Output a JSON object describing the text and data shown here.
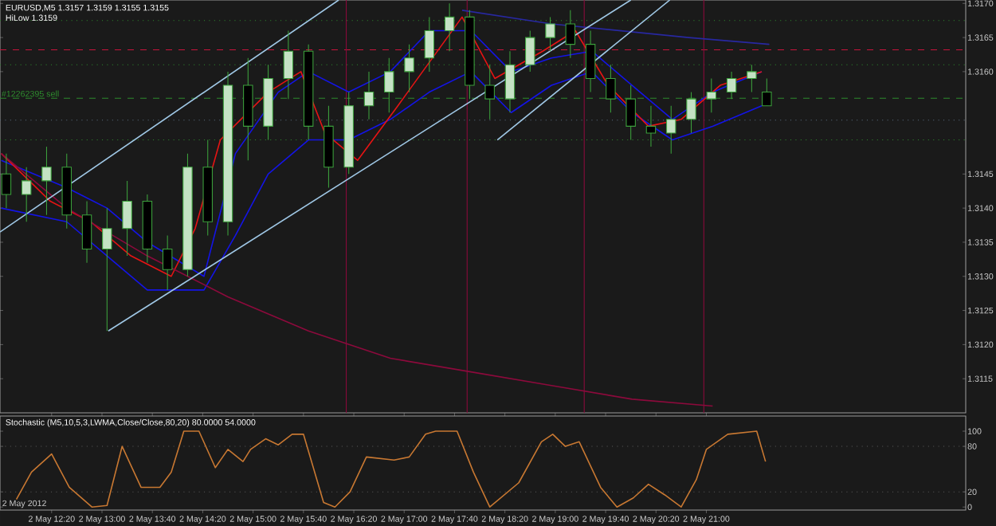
{
  "chart_data": [
    {
      "type": "candlestick",
      "title": "EURUSD,M5 1.3157 1.3159 1.3155 1.3155",
      "subtitle": "HiLow 1.3159",
      "color": "#3ca03c",
      "x": [
        "2012-05-02T11:44",
        "2012-05-02T12:00",
        "2012-05-02T12:16",
        "2012-05-02T12:32",
        "2012-05-02T12:48",
        "2012-05-02T13:04",
        "2012-05-02T13:20",
        "2012-05-02T13:36",
        "2012-05-02T13:52",
        "2012-05-02T14:08",
        "2012-05-02T14:24",
        "2012-05-02T14:40",
        "2012-05-02T14:56",
        "2012-05-02T15:12",
        "2012-05-02T15:28",
        "2012-05-02T15:44",
        "2012-05-02T16:00",
        "2012-05-02T16:16",
        "2012-05-02T16:32",
        "2012-05-02T16:48",
        "2012-05-02T17:04",
        "2012-05-02T17:20",
        "2012-05-02T17:36",
        "2012-05-02T17:52",
        "2012-05-02T18:08",
        "2012-05-02T18:24",
        "2012-05-02T18:40",
        "2012-05-02T18:56",
        "2012-05-02T19:12",
        "2012-05-02T19:28",
        "2012-05-02T19:44",
        "2012-05-02T20:00",
        "2012-05-02T20:16",
        "2012-05-02T20:32",
        "2012-05-02T20:48",
        "2012-05-02T21:04",
        "2012-05-02T21:20",
        "2012-05-02T21:36",
        "2012-05-02T21:48"
      ],
      "ohlc": [
        [
          1.3145,
          1.3148,
          1.314,
          1.3142
        ],
        [
          1.3142,
          1.3146,
          1.3138,
          1.3144
        ],
        [
          1.3144,
          1.3149,
          1.3139,
          1.3146
        ],
        [
          1.3146,
          1.3148,
          1.3137,
          1.3139
        ],
        [
          1.3139,
          1.3141,
          1.3132,
          1.3134
        ],
        [
          1.3134,
          1.314,
          1.3122,
          1.3137
        ],
        [
          1.3137,
          1.3144,
          1.3133,
          1.3141
        ],
        [
          1.3141,
          1.3142,
          1.3132,
          1.3134
        ],
        [
          1.3134,
          1.3136,
          1.3128,
          1.3131
        ],
        [
          1.3131,
          1.3148,
          1.313,
          1.3146
        ],
        [
          1.3146,
          1.315,
          1.3136,
          1.3138
        ],
        [
          1.3138,
          1.316,
          1.3136,
          1.3158
        ],
        [
          1.3158,
          1.3162,
          1.3147,
          1.3152
        ],
        [
          1.3152,
          1.3161,
          1.315,
          1.3159
        ],
        [
          1.3159,
          1.3166,
          1.3156,
          1.3163
        ],
        [
          1.3163,
          1.3164,
          1.315,
          1.3152
        ],
        [
          1.3152,
          1.3155,
          1.3143,
          1.3146
        ],
        [
          1.3146,
          1.3157,
          1.3145,
          1.3155
        ],
        [
          1.3155,
          1.316,
          1.3153,
          1.3157
        ],
        [
          1.3157,
          1.3162,
          1.3154,
          1.316
        ],
        [
          1.316,
          1.3164,
          1.3157,
          1.3162
        ],
        [
          1.3162,
          1.3168,
          1.316,
          1.3166
        ],
        [
          1.3166,
          1.317,
          1.3163,
          1.3168
        ],
        [
          1.3168,
          1.3169,
          1.3156,
          1.3158
        ],
        [
          1.3158,
          1.3161,
          1.3153,
          1.3156
        ],
        [
          1.3156,
          1.3163,
          1.3154,
          1.3161
        ],
        [
          1.3161,
          1.3166,
          1.316,
          1.3165
        ],
        [
          1.3165,
          1.3168,
          1.3163,
          1.3167
        ],
        [
          1.3167,
          1.3169,
          1.3162,
          1.3164
        ],
        [
          1.3164,
          1.3166,
          1.3157,
          1.3159
        ],
        [
          1.3159,
          1.3161,
          1.3154,
          1.3156
        ],
        [
          1.3156,
          1.3158,
          1.315,
          1.3152
        ],
        [
          1.3152,
          1.3155,
          1.3149,
          1.3151
        ],
        [
          1.3151,
          1.3155,
          1.3148,
          1.3153
        ],
        [
          1.3153,
          1.3157,
          1.3151,
          1.3156
        ],
        [
          1.3156,
          1.3159,
          1.3154,
          1.3157
        ],
        [
          1.3157,
          1.316,
          1.3156,
          1.3159
        ],
        [
          1.3159,
          1.3161,
          1.3157,
          1.316
        ],
        [
          1.3157,
          1.3159,
          1.3155,
          1.3155
        ]
      ],
      "series": [
        {
          "type": "line",
          "color": "#1414e6",
          "x": [
            "2012-05-02T11:40",
            "2012-05-02T12:32",
            "2012-05-02T13:04",
            "2012-05-02T13:36",
            "2012-05-02T14:21",
            "2012-05-02T14:46",
            "2012-05-02T15:20",
            "2012-05-02T15:44",
            "2012-05-02T16:16",
            "2012-05-02T16:49",
            "2012-05-02T17:20",
            "2012-05-02T17:53",
            "2012-05-02T18:25",
            "2012-05-02T18:57",
            "2012-05-02T19:29",
            "2012-05-02T20:01",
            "2012-05-02T20:33",
            "2012-05-02T21:05",
            "2012-05-02T21:44"
          ],
          "values": [
            1.3147,
            1.3143,
            1.314,
            1.3135,
            1.313,
            1.3148,
            1.3157,
            1.316,
            1.3157,
            1.316,
            1.3166,
            1.3166,
            1.316,
            1.3162,
            1.3163,
            1.3158,
            1.3153,
            1.3157,
            1.316
          ]
        },
        {
          "type": "line",
          "color": "#1414e6",
          "x": [
            "2012-05-02T11:40",
            "2012-05-02T12:32",
            "2012-05-02T13:04",
            "2012-05-02T13:36",
            "2012-05-02T14:21",
            "2012-05-02T14:46",
            "2012-05-02T15:12",
            "2012-05-02T15:44",
            "2012-05-02T16:16",
            "2012-05-02T16:49",
            "2012-05-02T17:20",
            "2012-05-02T17:53",
            "2012-05-02T18:25",
            "2012-05-02T18:57",
            "2012-05-02T19:29",
            "2012-05-02T20:01",
            "2012-05-02T20:33",
            "2012-05-02T21:05",
            "2012-05-02T21:44"
          ],
          "values": [
            1.314,
            1.3138,
            1.3133,
            1.3128,
            1.3128,
            1.3136,
            1.3145,
            1.315,
            1.315,
            1.3153,
            1.3157,
            1.316,
            1.3154,
            1.3158,
            1.316,
            1.3154,
            1.315,
            1.3152,
            1.3155
          ]
        },
        {
          "type": "line",
          "color": "#e61414",
          "x": [
            "2012-05-02T11:40",
            "2012-05-02T12:19",
            "2012-05-02T12:51",
            "2012-05-02T13:23",
            "2012-05-02T13:55",
            "2012-05-02T14:14",
            "2012-05-02T14:34",
            "2012-05-02T15:12",
            "2012-05-02T15:38",
            "2012-05-02T15:57",
            "2012-05-02T16:23",
            "2012-05-02T16:55",
            "2012-05-02T17:46",
            "2012-05-02T18:12",
            "2012-05-02T18:50",
            "2012-05-02T19:16",
            "2012-05-02T19:42",
            "2012-05-02T20:14",
            "2012-05-02T20:40",
            "2012-05-02T21:11",
            "2012-05-02T21:44"
          ],
          "values": [
            1.3148,
            1.3141,
            1.3138,
            1.3133,
            1.313,
            1.3137,
            1.315,
            1.3157,
            1.316,
            1.3151,
            1.3147,
            1.3155,
            1.3168,
            1.3159,
            1.3163,
            1.3166,
            1.3158,
            1.3152,
            1.3153,
            1.3158,
            1.316
          ]
        },
        {
          "type": "line",
          "color": "#8c0a3c",
          "x": [
            "2012-05-02T11:40",
            "2012-05-02T12:32",
            "2012-05-02T13:36",
            "2012-05-02T14:40",
            "2012-05-02T15:44",
            "2012-05-02T16:49",
            "2012-05-02T17:53",
            "2012-05-02T18:57",
            "2012-05-02T20:01",
            "2012-05-02T21:05"
          ],
          "values": [
            1.3148,
            1.314,
            1.3133,
            1.3127,
            1.3122,
            1.3118,
            1.3116,
            1.3114,
            1.3112,
            1.3111
          ]
        },
        {
          "type": "line",
          "color": "#2828a0",
          "x": [
            "2012-05-02T17:46",
            "2012-05-02T18:57",
            "2012-05-02T20:46",
            "2012-05-02T21:50"
          ],
          "values": [
            1.3169,
            1.3167,
            1.3165,
            1.3164
          ]
        },
        {
          "type": "line",
          "color": "#a0c8e6",
          "x": [
            "2012-05-02T11:39",
            "2012-05-02T16:08"
          ],
          "values": [
            1.31365,
            1.31705
          ]
        },
        {
          "type": "line",
          "color": "#a0c8e6",
          "x": [
            "2012-05-02T13:05",
            "2012-05-02T20:00"
          ],
          "values": [
            1.3122,
            1.31705
          ]
        },
        {
          "type": "line",
          "color": "#a0c8e6",
          "x": [
            "2012-05-02T18:14",
            "2012-05-02T20:31"
          ],
          "values": [
            1.315,
            1.31705
          ]
        }
      ],
      "ref_lines": [
        {
          "axis": "y",
          "value": 1.31675,
          "color": "#2e8b2e",
          "line_style": "dotted"
        },
        {
          "axis": "y",
          "value": 1.31632,
          "color": "#c8143c",
          "line_style": "dashed"
        },
        {
          "axis": "y",
          "value": 1.3161,
          "color": "#2e8b2e",
          "line_style": "dotted"
        },
        {
          "axis": "y",
          "value": 1.31561,
          "color": "#2e8b2e",
          "line_style": "dashed",
          "label": "#12262395 sell"
        },
        {
          "axis": "y",
          "value": 1.31529,
          "color": "#5a6e80",
          "line_style": "dotted"
        },
        {
          "axis": "y",
          "value": 1.315,
          "color": "#2e8b2e",
          "line_style": "dotted"
        },
        {
          "axis": "x",
          "value": "2012-05-02T16:14",
          "color": "#8c0a3c",
          "line_style": "solid"
        },
        {
          "axis": "x",
          "value": "2012-05-02T17:50",
          "color": "#8c0a3c",
          "line_style": "solid"
        },
        {
          "axis": "x",
          "value": "2012-05-02T19:23",
          "color": "#8c0a3c",
          "line_style": "solid"
        },
        {
          "axis": "x",
          "value": "2012-05-02T20:58",
          "color": "#8c0a3c",
          "line_style": "solid"
        }
      ],
      "xlim": [
        "2012-05-02T11:39",
        "2012-05-03T00:26"
      ],
      "ylim": [
        1.311,
        1.31705
      ],
      "yticks": [
        {
          "value": 1.317,
          "label": "1.3170"
        },
        {
          "value": 1.3165,
          "label": "1.3165"
        },
        {
          "value": 1.316,
          "label": "1.3160"
        },
        {
          "value": 1.3145,
          "label": "1.3145"
        },
        {
          "value": 1.314,
          "label": "1.3140"
        },
        {
          "value": 1.3135,
          "label": "1.3135"
        },
        {
          "value": 1.313,
          "label": "1.3130"
        },
        {
          "value": 1.3125,
          "label": "1.3125"
        },
        {
          "value": 1.312,
          "label": "1.3120"
        },
        {
          "value": 1.3115,
          "label": "1.3115"
        }
      ],
      "tick_labels": "y"
    },
    {
      "type": "line",
      "title": "Stochastic (M5,10,5,3,LWMA,Close/Close,80,20) 80.0000 54.0000",
      "series": [
        {
          "color": "#c87832",
          "x": [
            "2012-05-02T11:52",
            "2012-05-02T12:04",
            "2012-05-02T12:20",
            "2012-05-02T12:34",
            "2012-05-02T12:52",
            "2012-05-02T13:04",
            "2012-05-02T13:16",
            "2012-05-02T13:31",
            "2012-05-02T13:46",
            "2012-05-02T13:55",
            "2012-05-02T14:05",
            "2012-05-02T14:17",
            "2012-05-02T14:30",
            "2012-05-02T14:40",
            "2012-05-02T14:52",
            "2012-05-02T14:58",
            "2012-05-02T15:10",
            "2012-05-02T15:20",
            "2012-05-02T15:31",
            "2012-05-02T15:40",
            "2012-05-02T15:56",
            "2012-05-02T16:05",
            "2012-05-02T16:17",
            "2012-05-02T16:30",
            "2012-05-02T16:52",
            "2012-05-02T17:04",
            "2012-05-02T17:17",
            "2012-05-02T17:25",
            "2012-05-02T17:42",
            "2012-05-02T17:55",
            "2012-05-02T18:08",
            "2012-05-02T18:31",
            "2012-05-02T18:49",
            "2012-05-02T18:58",
            "2012-05-02T19:08",
            "2012-05-02T19:19",
            "2012-05-02T19:36",
            "2012-05-02T19:49",
            "2012-05-02T20:02",
            "2012-05-02T20:14",
            "2012-05-02T20:27",
            "2012-05-02T20:40",
            "2012-05-02T20:52",
            "2012-05-02T21:00",
            "2012-05-02T21:17",
            "2012-05-02T21:40",
            "2012-05-02T21:47"
          ],
          "values": [
            10,
            46,
            70,
            26,
            0,
            2,
            80,
            26,
            26,
            46,
            100,
            100,
            52,
            76,
            60,
            76,
            90,
            82,
            96,
            96,
            6,
            0,
            20,
            66,
            62,
            66,
            96,
            100,
            100,
            46,
            0,
            32,
            86,
            96,
            80,
            86,
            26,
            0,
            12,
            30,
            16,
            0,
            36,
            76,
            96,
            100,
            60
          ]
        }
      ],
      "ref_lines": [
        {
          "axis": "y",
          "value": 80,
          "color": "#5a5a5a",
          "line_style": "dotted"
        },
        {
          "axis": "y",
          "value": 20,
          "color": "#5a5a5a",
          "line_style": "dotted"
        }
      ],
      "xlim": [
        "2012-05-02T11:39",
        "2012-05-03T00:26"
      ],
      "ylim": [
        -4,
        120
      ],
      "yticks": [
        0,
        20,
        80,
        100
      ],
      "annotations": [
        "2 May 2012"
      ],
      "xticks": [
        {
          "value": "2012-05-02T12:20",
          "label": "2 May 12:20"
        },
        {
          "value": "2012-05-02T13:00",
          "label": "2 May 13:00"
        },
        {
          "value": "2012-05-02T13:40",
          "label": "2 May 13:40"
        },
        {
          "value": "2012-05-02T14:20",
          "label": "2 May 14:20"
        },
        {
          "value": "2012-05-02T15:00",
          "label": "2 May 15:00"
        },
        {
          "value": "2012-05-02T15:40",
          "label": "2 May 15:40"
        },
        {
          "value": "2012-05-02T16:20",
          "label": "2 May 16:20"
        },
        {
          "value": "2012-05-02T17:00",
          "label": "2 May 17:00"
        },
        {
          "value": "2012-05-02T17:40",
          "label": "2 May 17:40"
        },
        {
          "value": "2012-05-02T18:20",
          "label": "2 May 18:20"
        },
        {
          "value": "2012-05-02T19:00",
          "label": "2 May 19:00"
        },
        {
          "value": "2012-05-02T19:40",
          "label": "2 May 19:40"
        },
        {
          "value": "2012-05-02T20:20",
          "label": "2 May 20:20"
        },
        {
          "value": "2012-05-02T21:00",
          "label": "2 May 21:00"
        }
      ]
    }
  ]
}
